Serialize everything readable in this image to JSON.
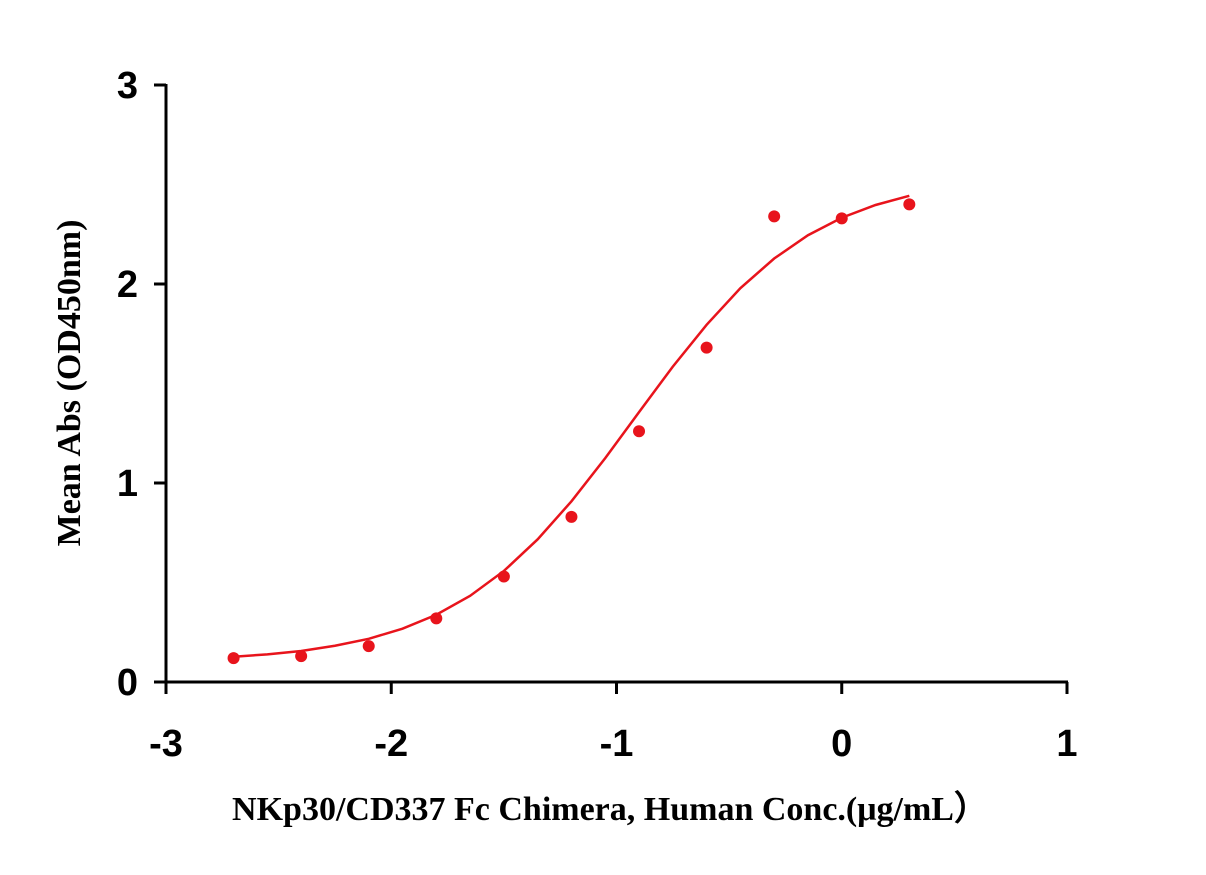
{
  "chart_data": {
    "type": "scatter",
    "x_label": "NKp30/CD337 Fc Chimera, Human Conc.(μg/mL）",
    "y_label": "Mean Abs (OD450nm)",
    "xlim": [
      -3,
      1
    ],
    "xticks": [
      -3,
      -2,
      -1,
      0,
      1
    ],
    "ylim": [
      0,
      3
    ],
    "yticks": [
      0,
      1,
      2,
      3
    ],
    "series": [
      {
        "style": "markers",
        "color": "#e8141c",
        "x": [
          -2.7,
          -2.4,
          -2.1,
          -1.8,
          -1.5,
          -1.2,
          -0.9,
          -0.6,
          -0.3,
          0,
          0.3
        ],
        "values": [
          0.12,
          0.13,
          0.18,
          0.32,
          0.53,
          0.83,
          1.26,
          1.68,
          2.34,
          2.33,
          2.4
        ]
      },
      {
        "style": "line",
        "color": "#e8141c",
        "x": [
          -2.7,
          -2.55,
          -2.4,
          -2.25,
          -2.1,
          -1.95,
          -1.8,
          -1.65,
          -1.5,
          -1.35,
          -1.2,
          -1.05,
          -0.9,
          -0.75,
          -0.6,
          -0.45,
          -0.3,
          -0.15,
          0,
          0.15,
          0.3
        ],
        "values": [
          0.127,
          0.139,
          0.156,
          0.182,
          0.217,
          0.268,
          0.338,
          0.433,
          0.558,
          0.717,
          0.908,
          1.125,
          1.356,
          1.585,
          1.795,
          1.979,
          2.128,
          2.245,
          2.333,
          2.397,
          2.443
        ]
      }
    ]
  }
}
